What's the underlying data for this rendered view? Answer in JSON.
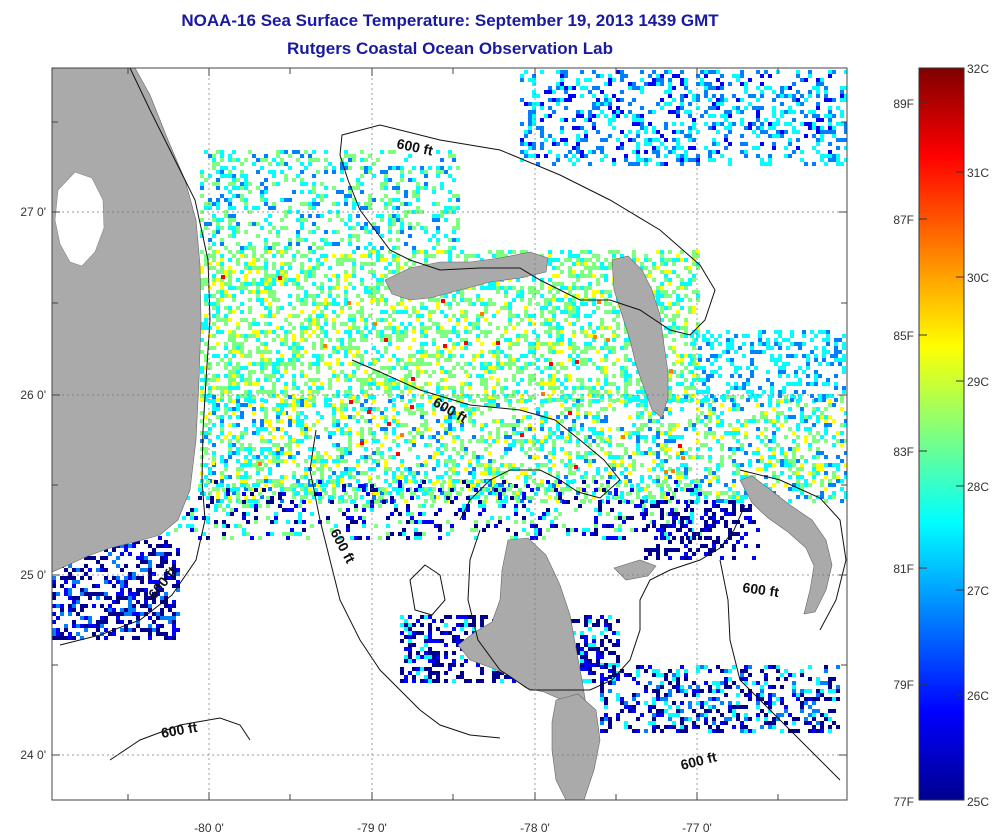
{
  "title": "NOAA-16 Sea Surface Temperature:  September 19, 2013 1439 GMT",
  "subtitle": "Rutgers Coastal Ocean Observation Lab",
  "map": {
    "lon_ticks": [
      {
        "value": -80,
        "label": "-80 0'"
      },
      {
        "value": -79,
        "label": "-79 0'"
      },
      {
        "value": -78,
        "label": "-78 0'"
      },
      {
        "value": -77,
        "label": "-77 0'"
      }
    ],
    "lat_ticks": [
      {
        "value": 27,
        "label": "27 0'"
      },
      {
        "value": 26,
        "label": "26 0'"
      },
      {
        "value": 25,
        "label": "25 0'"
      },
      {
        "value": 24,
        "label": "24 0'"
      }
    ],
    "contour_labels": [
      "600 ft",
      "600 ft",
      "600 ft",
      "600 ft",
      "600 ft",
      "600 ft",
      "600 ft"
    ],
    "land_color": "#aaaaaa"
  },
  "colorbar": {
    "celsius": [
      "32C",
      "31C",
      "30C",
      "29C",
      "28C",
      "27C",
      "26C",
      "25C"
    ],
    "fahrenheit": [
      "89F",
      "87F",
      "85F",
      "83F",
      "81F",
      "79F",
      "77F"
    ],
    "colors": [
      "#00008f",
      "#0000ff",
      "#007fff",
      "#00ffff",
      "#7fff7f",
      "#ffff00",
      "#ff7f00",
      "#ff0000",
      "#7f0000"
    ]
  }
}
